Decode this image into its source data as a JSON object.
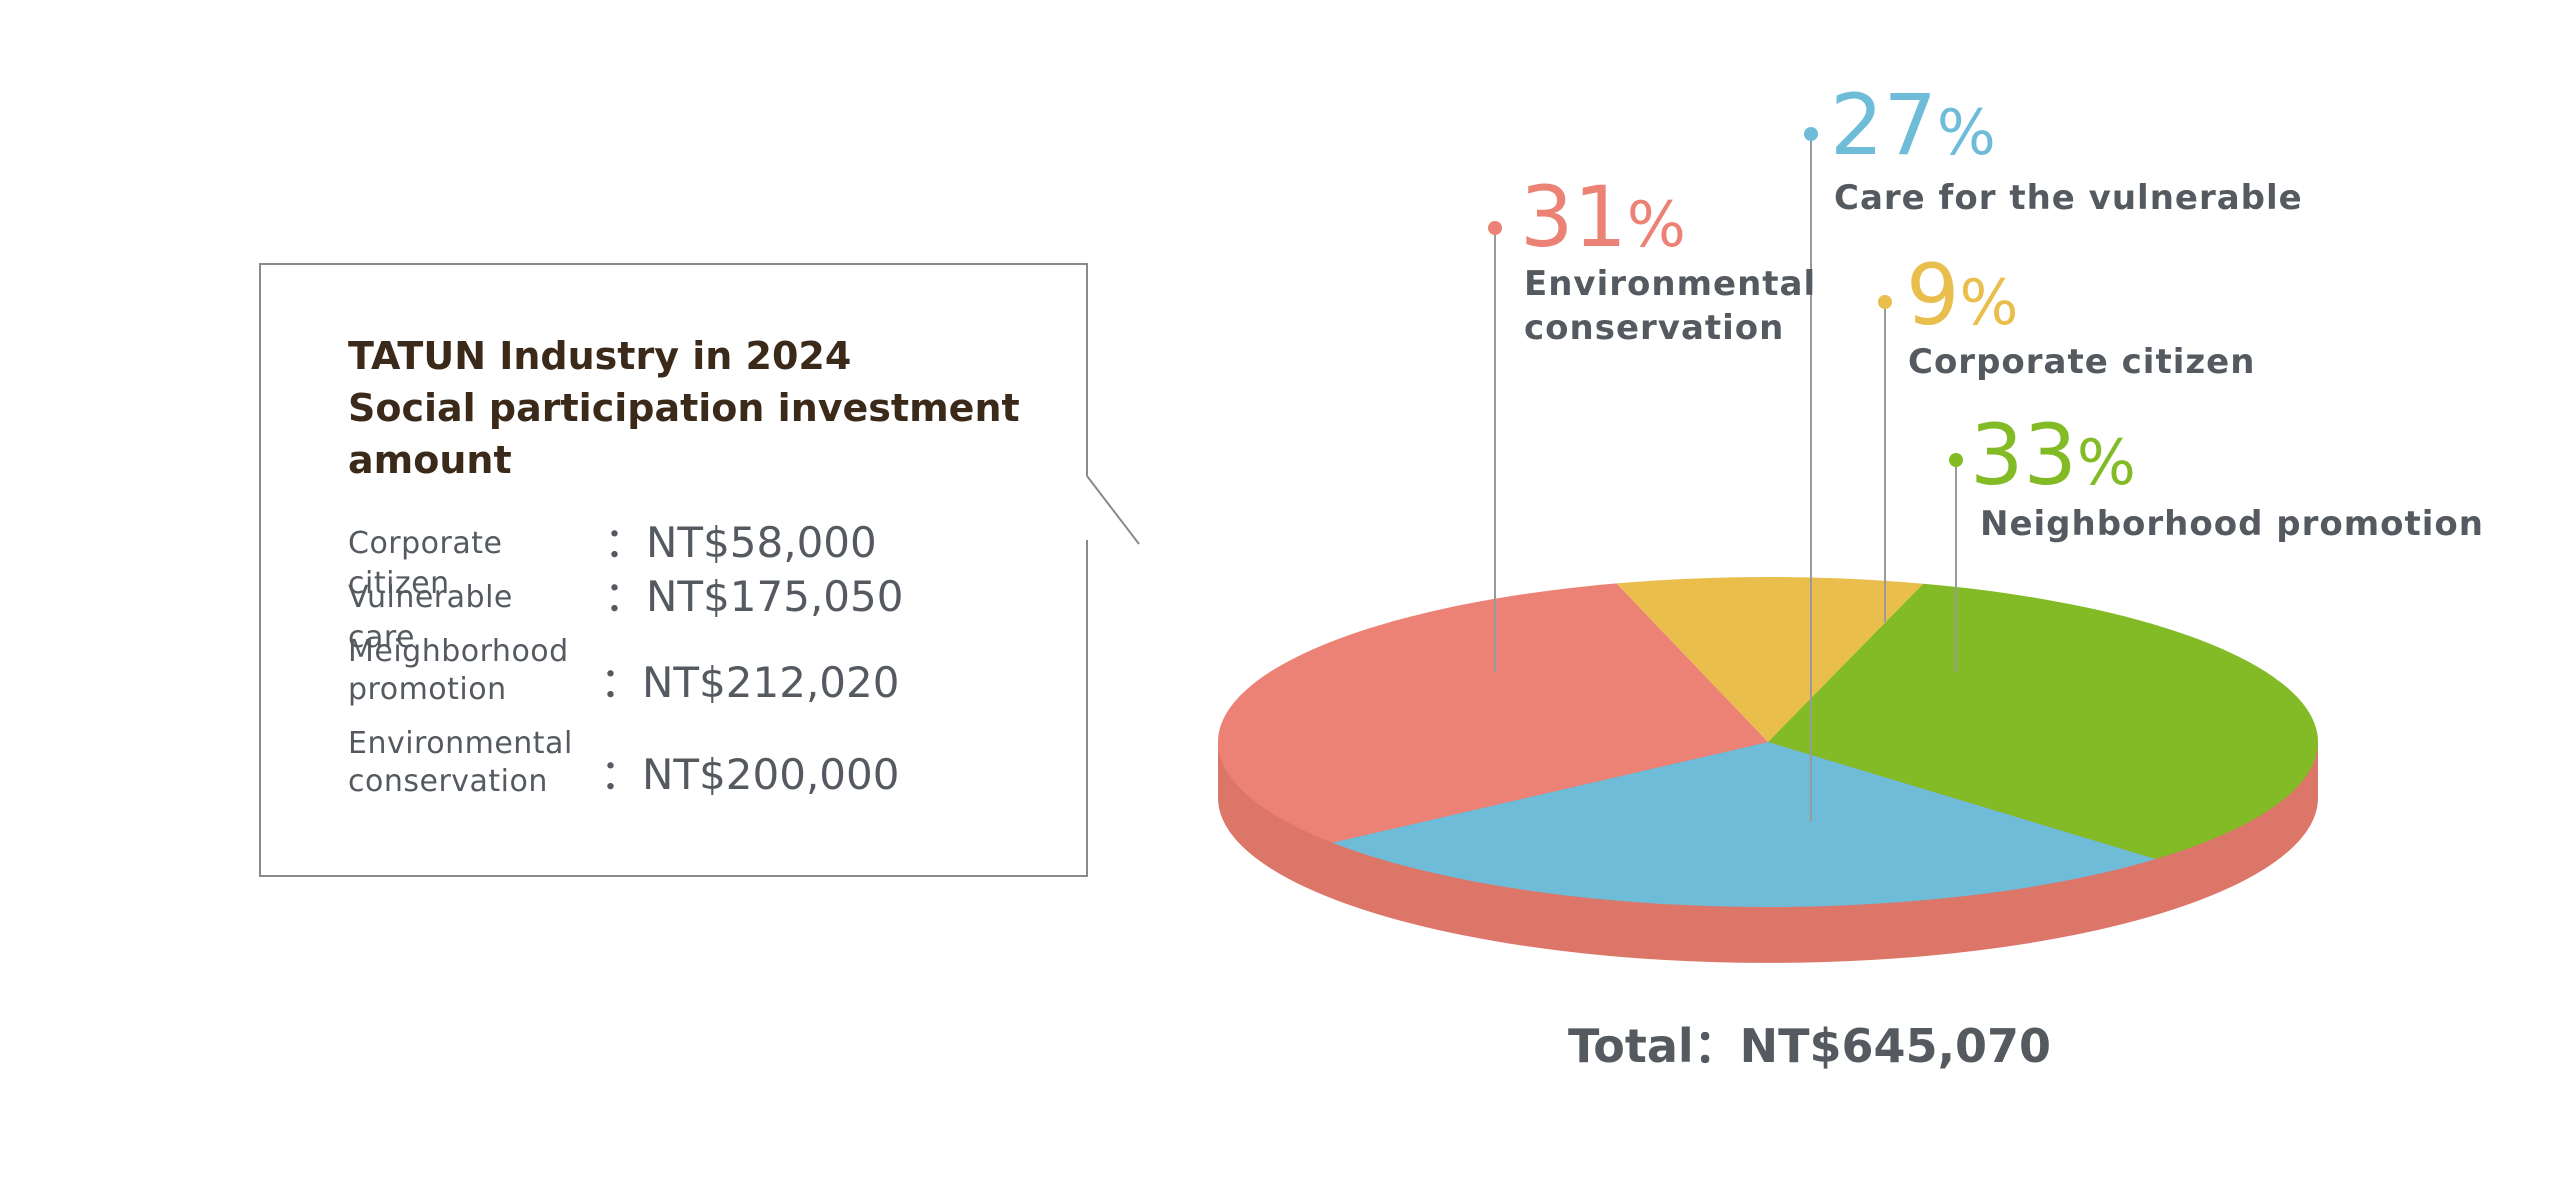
{
  "callout": {
    "title_line1": "TATUN Industry in 2024",
    "title_line2": "Social participation investment",
    "title_line3": "amount",
    "rows": [
      {
        "label_line1": "Corporate citizen",
        "label_line2": "",
        "value": "：NT$58,000"
      },
      {
        "label_line1": "Vulnerable care",
        "label_line2": "",
        "value": "：NT$175,050"
      },
      {
        "label_line1": "Meighborhood",
        "label_line2": "promotion",
        "value": "：NT$212,020"
      },
      {
        "label_line1": "Environmental",
        "label_line2": "conservation",
        "value": "：NT$200,000"
      }
    ]
  },
  "chart_data": {
    "type": "pie",
    "style": "3d",
    "total_label": "Total：NT$645,070",
    "percent_sign": "%",
    "slices": [
      {
        "name": "Environmental conservation",
        "label_line1": "Environmental",
        "label_line2": "conservation",
        "percent": 31,
        "percent_text": "31",
        "color": "#ec8175",
        "side_color": "#dc7669"
      },
      {
        "name": "Care for the vulnerable",
        "label_line1": "Care for the vulnerable",
        "label_line2": "",
        "percent": 27,
        "percent_text": "27",
        "color": "#6fbcd9",
        "side_color": "#dc7669"
      },
      {
        "name": "Corporate citizen",
        "label_line1": "Corporate citizen",
        "label_line2": "",
        "percent": 9,
        "percent_text": "9",
        "color": "#e9be4c",
        "side_color": "#dc7669"
      },
      {
        "name": "Neighborhood promotion",
        "label_line1": "Neighborhood promotion",
        "label_line2": "",
        "percent": 33,
        "percent_text": "33",
        "color": "#82bb26",
        "side_color": "#dc7669"
      }
    ]
  }
}
